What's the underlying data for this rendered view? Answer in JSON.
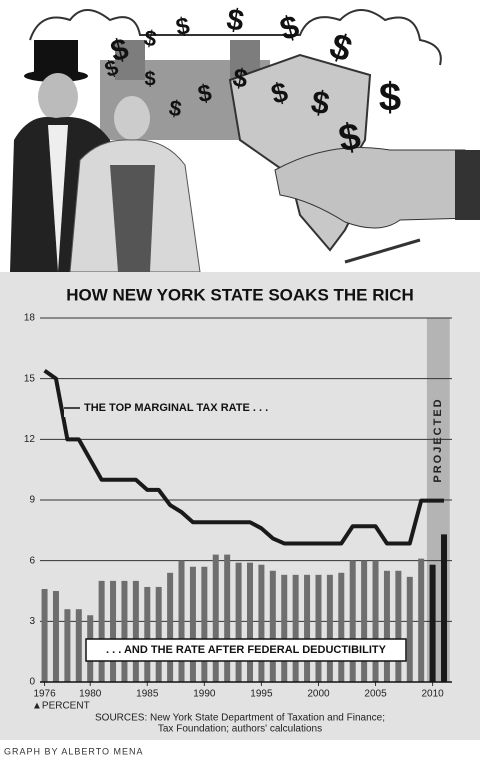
{
  "illustration_symbol": "$",
  "credit": "GRAPH BY ALBERTO MENA",
  "chart_data": {
    "type": "combo",
    "title": "HOW NEW YORK STATE SOAKS THE RICH",
    "y_unit_label": "▲PERCENT",
    "projected_label": "PROJECTED",
    "projected_years": [
      2010,
      2011
    ],
    "sources": [
      "SOURCES: New York State Department of Taxation and Finance;",
      "Tax Foundation; authors' calculations"
    ],
    "x": [
      1976,
      1977,
      1978,
      1979,
      1980,
      1981,
      1982,
      1983,
      1984,
      1985,
      1986,
      1987,
      1988,
      1989,
      1990,
      1991,
      1992,
      1993,
      1994,
      1995,
      1996,
      1997,
      1998,
      1999,
      2000,
      2001,
      2002,
      2003,
      2004,
      2005,
      2006,
      2007,
      2008,
      2009,
      2010,
      2011
    ],
    "series": [
      {
        "name": "THE TOP MARGINAL TAX RATE . . .",
        "type": "line",
        "color": "#1a1a1a",
        "values": [
          15.4,
          15,
          12,
          12,
          11,
          10,
          10,
          10,
          10,
          9.5,
          9.5,
          8.75,
          8.4,
          7.9,
          7.9,
          7.9,
          7.9,
          7.9,
          7.9,
          7.6,
          7.1,
          6.85,
          6.85,
          6.85,
          6.85,
          6.85,
          6.85,
          7.7,
          7.7,
          7.7,
          6.85,
          6.85,
          6.85,
          8.97,
          8.97,
          8.97
        ]
      },
      {
        "name": ". . . AND THE RATE AFTER FEDERAL DEDUCTIBILITY",
        "type": "bar",
        "color": "#6e6e6e",
        "values": [
          4.6,
          4.5,
          3.6,
          3.6,
          3.3,
          5.0,
          5.0,
          5.0,
          5.0,
          4.7,
          4.7,
          5.4,
          6.0,
          5.7,
          5.7,
          6.3,
          6.3,
          5.9,
          5.9,
          5.8,
          5.5,
          5.3,
          5.3,
          5.3,
          5.3,
          5.3,
          5.4,
          6.0,
          6.0,
          6.0,
          5.5,
          5.5,
          5.2,
          6.1,
          5.8,
          7.3
        ]
      }
    ],
    "projected_color": "#1a1a1a",
    "xlim": [
      1975.6,
      2011.7
    ],
    "xticks": [
      1976,
      1980,
      1985,
      1990,
      1995,
      2000,
      2005,
      2010
    ],
    "ylim": [
      0,
      18
    ],
    "yticks": [
      0,
      3,
      6,
      9,
      12,
      15,
      18
    ],
    "grid": true
  }
}
